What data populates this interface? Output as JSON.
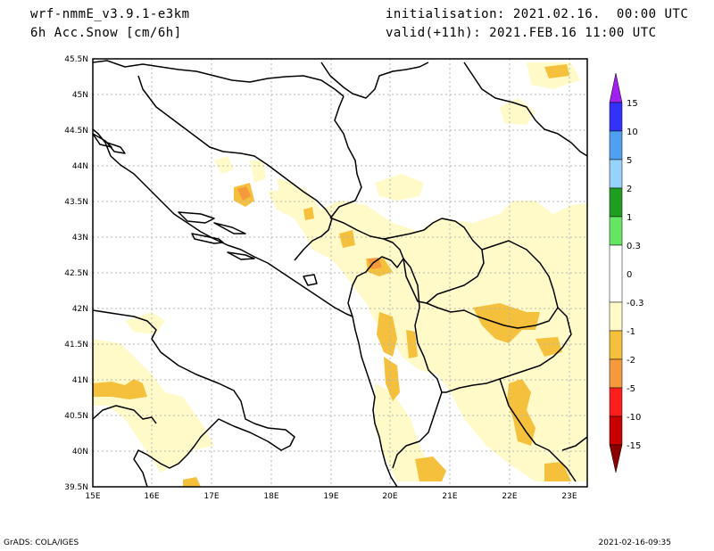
{
  "header": {
    "model": "wrf-nmmE_v3.9.1-e3km",
    "field": "6h Acc.Snow [cm/6h]",
    "init": "initialisation: 2021.02.16.  00:00 UTC",
    "valid": "valid(+11h): 2021.FEB.16 11:00 UTC"
  },
  "footer": {
    "left": "GrADS: COLA/IGES",
    "right": "2021-02-16-09:35"
  },
  "map": {
    "lon_labels": [
      "15E",
      "16E",
      "17E",
      "18E",
      "19E",
      "20E",
      "21E",
      "22E",
      "23E"
    ],
    "lat_labels": [
      "45.5N",
      "45N",
      "44.5N",
      "44N",
      "43.5N",
      "43N",
      "42.5N",
      "42N",
      "41.5N",
      "41N",
      "40.5N",
      "40N",
      "39.5N"
    ],
    "extent": {
      "lon": [
        15,
        23.3
      ],
      "lat": [
        39.5,
        45.5
      ]
    },
    "grid": true
  },
  "legend": {
    "labels": [
      "15",
      "10",
      "5",
      "2",
      "1",
      "0.3",
      "0",
      "-0.3",
      "-1",
      "-2",
      "-5",
      "-10",
      "-15"
    ],
    "colors": {
      "top_arrow": "#a020f0",
      "15": "#3232ff",
      "10": "#50a0f0",
      "5": "#96d2fa",
      "2": "#1e9e1e",
      "1": "#64e664",
      "0.3": "#ffffff",
      "-0.3": "#fffac8",
      "-1": "#f5c03c",
      "-2": "#f59a3c",
      "-5": "#ff1e1e",
      "-10": "#c80000",
      "bottom_arrow": "#8b0000"
    }
  },
  "colors": {
    "light_snow": "#fffac8",
    "medium_snow": "#f5c03c",
    "heavy_snow": "#f59a3c",
    "border": "#000000",
    "grid": "#b4b4b4"
  }
}
